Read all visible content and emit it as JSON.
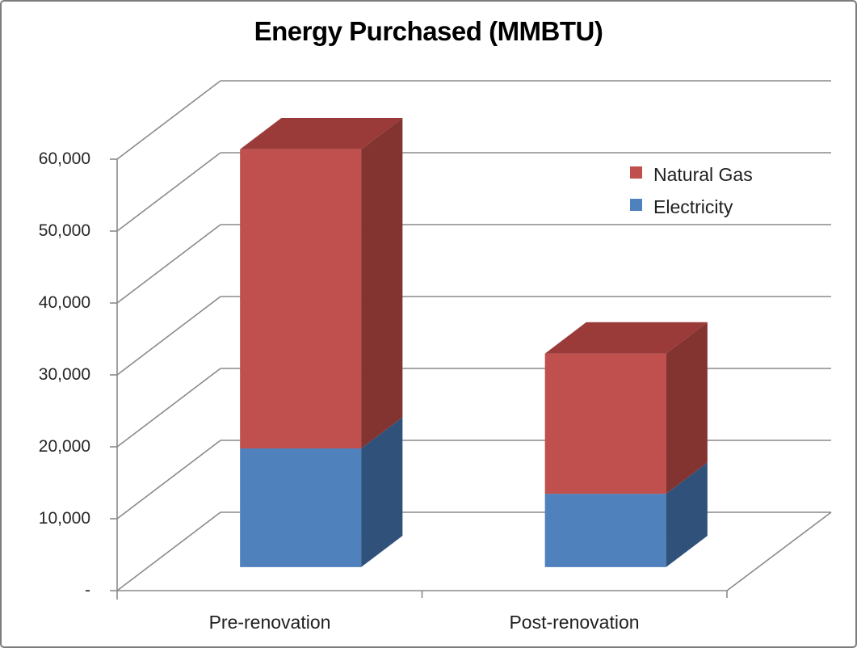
{
  "window": {
    "background": "#ffffff",
    "border_color": "#7c7c7c"
  },
  "chart_data": {
    "type": "bar",
    "subtype": "3d-stacked-column",
    "title": "Energy Purchased (MMBTU)",
    "categories": [
      "Pre-renovation",
      "Post-renovation"
    ],
    "series": [
      {
        "name": "Electricity",
        "values": [
          16500,
          10200
        ],
        "front_color": "#4F81BD",
        "side_color": "#30517A",
        "top_color": "#3D699C"
      },
      {
        "name": "Natural Gas",
        "values": [
          41600,
          19500
        ],
        "front_color": "#C0504D",
        "side_color": "#833431",
        "top_color": "#9A3B39"
      }
    ],
    "totals": [
      58100,
      29700
    ],
    "ylim": [
      0,
      60000
    ],
    "ytick_step": 10000,
    "yticklabels": [
      "-",
      "10,000",
      "20,000",
      "30,000",
      "40,000",
      "50,000",
      "60,000"
    ],
    "xlabel": "",
    "ylabel": "",
    "grid": true,
    "gridline_color": "#8a8a8a",
    "axis_text_color": "#262626",
    "legend": {
      "position": "right",
      "entries": [
        {
          "label": "Natural Gas",
          "color": "#C0504D"
        },
        {
          "label": "Electricity",
          "color": "#4F81BD"
        }
      ]
    }
  }
}
